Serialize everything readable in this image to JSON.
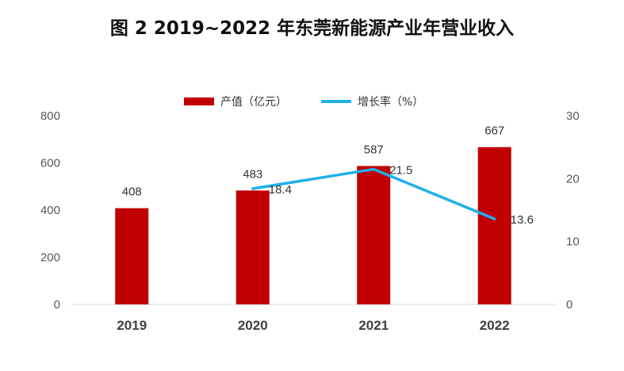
{
  "title": "图 2 2019~2022 年东莞新能源产业年营业收入",
  "colors": {
    "bar": "#c00000",
    "line": "#1fb1e8",
    "axis": "#d9d9d9",
    "text": "#595959"
  },
  "chart_data": {
    "type": "bar",
    "title": "图 2 2019~2022 年东莞新能源产业年营业收入",
    "categories": [
      "2019",
      "2020",
      "2021",
      "2022"
    ],
    "series": [
      {
        "name": "产值（亿元）",
        "type": "bar",
        "axis": "left",
        "values": [
          408,
          483,
          587,
          667
        ],
        "labels": [
          "408",
          "483",
          "587",
          "667"
        ]
      },
      {
        "name": "增长率（%）",
        "type": "line",
        "axis": "right",
        "values": [
          null,
          18.4,
          21.5,
          13.6
        ],
        "labels": [
          "",
          "18.4",
          "21.5",
          "13.6"
        ]
      }
    ],
    "y_left": {
      "ylim": [
        0,
        800
      ],
      "ticks": [
        "0",
        "200",
        "400",
        "600",
        "800"
      ]
    },
    "y_right": {
      "ylim": [
        0,
        30
      ],
      "ticks": [
        "0",
        "10",
        "20",
        "30"
      ]
    },
    "legend": {
      "position": "top-center"
    },
    "grid": false
  }
}
